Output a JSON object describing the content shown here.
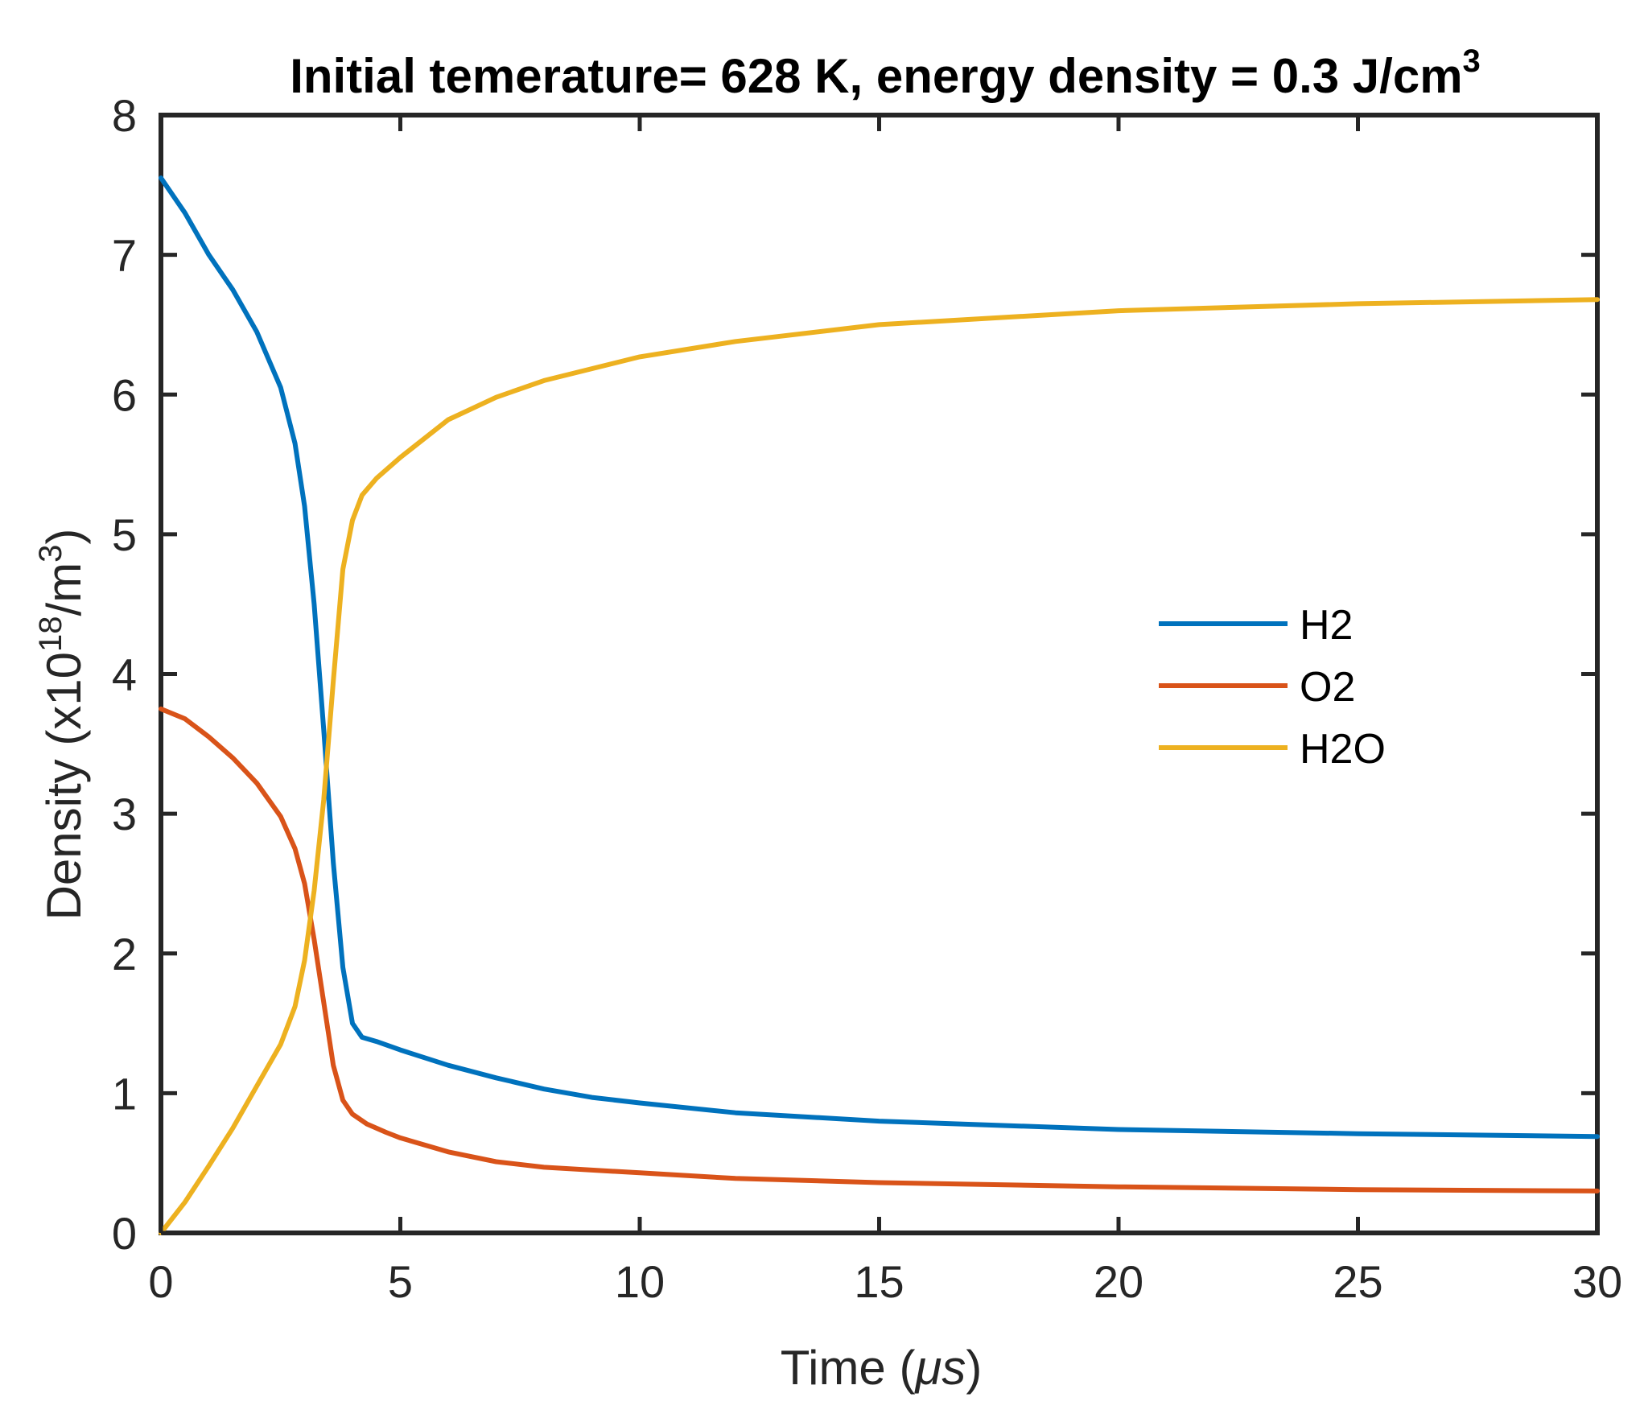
{
  "chart_data": {
    "type": "line",
    "title": "Initial temerature= 628 K, energy density = 0.3 J/cm",
    "title_superscript": "3",
    "xlabel_prefix": "Time (",
    "xlabel_unit": "μs",
    "xlabel_suffix": ")",
    "ylabel_prefix": "Density (x10",
    "ylabel_exp": "18",
    "ylabel_mid": "/m",
    "ylabel_exp2": "3",
    "ylabel_suffix": ")",
    "xlim": [
      0,
      30
    ],
    "ylim": [
      0,
      8
    ],
    "xticks": [
      0,
      5,
      10,
      15,
      20,
      25,
      30
    ],
    "yticks": [
      0,
      1,
      2,
      3,
      4,
      5,
      6,
      7,
      8
    ],
    "grid": false,
    "legend_position": "center-right",
    "series": [
      {
        "name": "H2",
        "color": "#0072BD",
        "x": [
          0,
          0.5,
          1,
          1.5,
          2,
          2.5,
          2.8,
          3.0,
          3.2,
          3.4,
          3.6,
          3.8,
          4.0,
          4.2,
          4.5,
          5,
          6,
          7,
          8,
          9,
          10,
          12,
          15,
          20,
          25,
          30
        ],
        "y": [
          7.55,
          7.3,
          7.0,
          6.75,
          6.45,
          6.05,
          5.65,
          5.2,
          4.5,
          3.6,
          2.65,
          1.9,
          1.5,
          1.4,
          1.37,
          1.31,
          1.2,
          1.11,
          1.03,
          0.97,
          0.93,
          0.86,
          0.8,
          0.74,
          0.71,
          0.69
        ]
      },
      {
        "name": "O2",
        "color": "#D95319",
        "x": [
          0,
          0.5,
          1,
          1.5,
          2,
          2.5,
          2.8,
          3.0,
          3.2,
          3.4,
          3.6,
          3.8,
          4.0,
          4.3,
          4.7,
          5,
          6,
          7,
          8,
          10,
          12,
          15,
          20,
          25,
          30
        ],
        "y": [
          3.75,
          3.68,
          3.55,
          3.4,
          3.22,
          2.98,
          2.75,
          2.5,
          2.1,
          1.65,
          1.2,
          0.95,
          0.85,
          0.78,
          0.72,
          0.68,
          0.58,
          0.51,
          0.47,
          0.43,
          0.39,
          0.36,
          0.33,
          0.31,
          0.3
        ]
      },
      {
        "name": "H2O",
        "color": "#EDB120",
        "x": [
          0,
          0.5,
          1,
          1.5,
          2,
          2.5,
          2.8,
          3.0,
          3.2,
          3.4,
          3.6,
          3.8,
          4.0,
          4.2,
          4.5,
          5,
          6,
          7,
          8,
          10,
          12,
          15,
          20,
          25,
          30
        ],
        "y": [
          0.0,
          0.22,
          0.48,
          0.75,
          1.05,
          1.35,
          1.62,
          1.95,
          2.45,
          3.1,
          3.95,
          4.75,
          5.1,
          5.28,
          5.4,
          5.55,
          5.82,
          5.98,
          6.1,
          6.27,
          6.38,
          6.5,
          6.6,
          6.65,
          6.68
        ]
      }
    ]
  }
}
